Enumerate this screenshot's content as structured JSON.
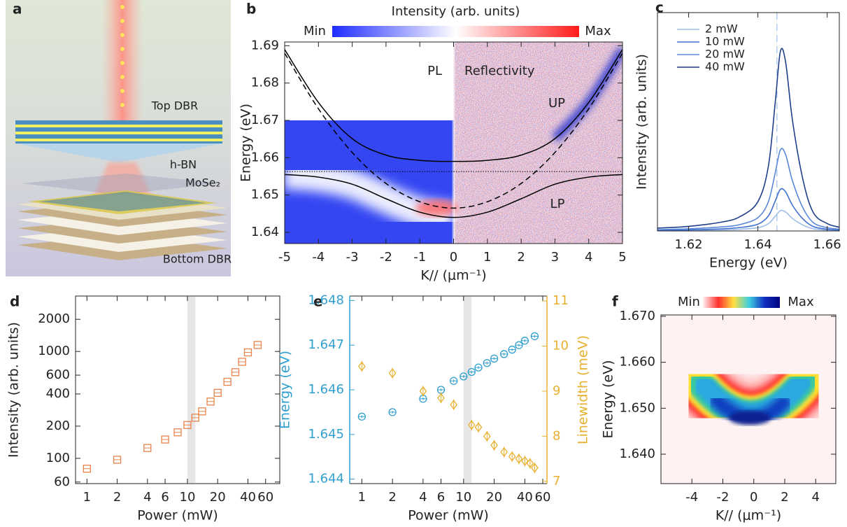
{
  "panel_a": {
    "label": "a",
    "layers": [
      "Top DBR",
      "h-BN",
      "MoSe₂",
      "Bottom DBR"
    ]
  },
  "chart_data": [
    {
      "type": "heatmap",
      "panel": "b",
      "colorbar_title": "Intensity (arb. units)",
      "colorbar_labels": [
        "Min",
        "Max"
      ],
      "colorbar_colors": [
        "#1f2cff",
        "#ffffff",
        "#ff1a1a"
      ],
      "xlabel": "K// (μm⁻¹)",
      "ylabel": "Energy (eV)",
      "xlim": [
        -5,
        5
      ],
      "ylim": [
        1.637,
        1.691
      ],
      "xticks": [
        -5,
        -4,
        -3,
        -2,
        -1,
        0,
        1,
        2,
        3,
        4,
        5
      ],
      "yticks": [
        1.64,
        1.65,
        1.66,
        1.67,
        1.68,
        1.69
      ],
      "annotations": [
        "PL",
        "Reflectivity",
        "UP",
        "LP"
      ],
      "x": [
        -5,
        -4,
        -3,
        -2,
        -1,
        0,
        1,
        2,
        3,
        4,
        5
      ],
      "curves": [
        {
          "style": "solid",
          "color": "#000000",
          "values": [
            1.689,
            1.6748,
            1.6651,
            1.6607,
            1.6593,
            1.659,
            1.6593,
            1.6607,
            1.6651,
            1.6748,
            1.689
          ]
        },
        {
          "style": "solid",
          "color": "#000000",
          "values": [
            1.6555,
            1.6548,
            1.6529,
            1.649,
            1.6454,
            1.644,
            1.6454,
            1.649,
            1.6529,
            1.6548,
            1.6555
          ]
        },
        {
          "style": "dashed",
          "color": "#000000",
          "values": [
            1.688,
            1.6731,
            1.6614,
            1.6531,
            1.6482,
            1.6465,
            1.6482,
            1.6531,
            1.6614,
            1.6731,
            1.688
          ]
        }
      ],
      "exciton_energy": 1.6563
    },
    {
      "type": "line",
      "panel": "c",
      "xlabel": "Energy (eV)",
      "ylabel": "Intensity (arb. units)",
      "xlim": [
        1.611,
        1.6635
      ],
      "ylim": [
        0,
        1
      ],
      "xticks": [
        1.62,
        1.64,
        1.66
      ],
      "marker_line": 1.6455,
      "marker_color": "#8fb0e0",
      "legend": "upper left",
      "x": [
        1.611,
        1.62,
        1.63,
        1.635,
        1.64,
        1.643,
        1.645,
        1.6465,
        1.648,
        1.65,
        1.653,
        1.656,
        1.66,
        1.6635
      ],
      "series": [
        {
          "name": "2 mW",
          "color": "#9fbde9",
          "values": [
            0.001,
            0.002,
            0.005,
            0.008,
            0.015,
            0.033,
            0.067,
            0.093,
            0.087,
            0.057,
            0.027,
            0.01,
            0.004,
            0.002
          ]
        },
        {
          "name": "10 mW",
          "color": "#3f6fcf",
          "values": [
            0.003,
            0.005,
            0.01,
            0.016,
            0.031,
            0.068,
            0.137,
            0.191,
            0.179,
            0.117,
            0.055,
            0.02,
            0.008,
            0.004
          ]
        },
        {
          "name": "20 mW",
          "color": "#5a87d8",
          "values": [
            0.006,
            0.01,
            0.019,
            0.03,
            0.061,
            0.133,
            0.266,
            0.372,
            0.35,
            0.228,
            0.106,
            0.038,
            0.015,
            0.008
          ]
        },
        {
          "name": "40 mW",
          "color": "#1e3f8a",
          "values": [
            0.013,
            0.021,
            0.042,
            0.067,
            0.134,
            0.294,
            0.588,
            0.823,
            0.773,
            0.504,
            0.235,
            0.084,
            0.034,
            0.017
          ]
        }
      ]
    },
    {
      "type": "scatter",
      "panel": "d",
      "xlabel": "Power (mW)",
      "ylabel": "Intensity (arb. units)",
      "xscale": "log",
      "yscale": "log",
      "xlim": [
        0.77,
        83
      ],
      "ylim": [
        58,
        3300
      ],
      "xticks": [
        1,
        2,
        4,
        6,
        10,
        20,
        40,
        60
      ],
      "yticks": [
        60,
        100,
        200,
        400,
        600,
        1000,
        2000
      ],
      "shaded_x": [
        10,
        12
      ],
      "shade_color": "#e6e6e6",
      "series": [
        {
          "color": "#e8834a",
          "marker": "square",
          "x": [
            1,
            2,
            4,
            6,
            8,
            10,
            12,
            14,
            17,
            20,
            25,
            30,
            35,
            40,
            50
          ],
          "values": [
            80,
            97,
            125,
            150,
            175,
            205,
            240,
            275,
            340,
            410,
            520,
            640,
            800,
            980,
            1150
          ]
        }
      ]
    },
    {
      "type": "scatter",
      "panel": "e",
      "xlabel": "Power (mW)",
      "ylabel": "Energy (eV)",
      "y2label": "Linewidth (meV)",
      "xscale": "log",
      "xlim": [
        0.76,
        66
      ],
      "ylim": [
        1.6439,
        1.6481
      ],
      "yticks": [
        1.644,
        1.645,
        1.646,
        1.647,
        1.648
      ],
      "y2lim": [
        6.95,
        11.11
      ],
      "y2ticks": [
        7,
        8,
        9,
        10,
        11
      ],
      "xticks": [
        1,
        2,
        4,
        6,
        10,
        20,
        40,
        60
      ],
      "shaded_x": [
        10,
        12
      ],
      "shade_color": "#e6e6e6",
      "ycolor": "#2f9fd0",
      "y2color": "#e8b030",
      "series": [
        {
          "color": "#2f9fd0",
          "marker": "circle",
          "x": [
            1,
            2,
            4,
            6,
            8,
            10,
            12,
            14,
            17,
            20,
            25,
            30,
            35,
            40,
            50
          ],
          "values": [
            1.6454,
            1.6455,
            1.6458,
            1.646,
            1.6462,
            1.6463,
            1.6464,
            1.6465,
            1.6466,
            1.6467,
            1.6468,
            1.6469,
            1.647,
            1.6471,
            1.6472
          ],
          "errors": [
            3e-05,
            3e-05,
            3e-05,
            3e-05,
            3e-05,
            3e-05,
            3e-05,
            3e-05,
            3e-05,
            3e-05,
            3e-05,
            3e-05,
            3e-05,
            3e-05,
            3e-05
          ]
        },
        {
          "color": "#e8b030",
          "marker": "diamond",
          "axis": "y2",
          "x": [
            1,
            2,
            4,
            6,
            8,
            12,
            14,
            17,
            20,
            25,
            30,
            35,
            40,
            45,
            50
          ],
          "values": [
            9.55,
            9.4,
            9.0,
            8.85,
            8.7,
            8.25,
            8.2,
            8.0,
            7.8,
            7.65,
            7.55,
            7.5,
            7.45,
            7.4,
            7.3
          ],
          "errors": [
            0.12,
            0.12,
            0.12,
            0.12,
            0.12,
            0.12,
            0.12,
            0.12,
            0.12,
            0.12,
            0.12,
            0.12,
            0.12,
            0.12,
            0.12
          ]
        }
      ]
    },
    {
      "type": "heatmap",
      "panel": "f",
      "colorbar_labels": [
        "Min",
        "Max"
      ],
      "colorbar_colors": [
        "#fff0f0",
        "#ff3030",
        "#ffe040",
        "#40d0e0",
        "#1030c0",
        "#000080"
      ],
      "xlabel": "K// (μm⁻¹)",
      "ylabel": "Energy (eV)",
      "xlim": [
        -6,
        5.3
      ],
      "ylim": [
        1.6336,
        1.6703
      ],
      "xticks": [
        -4,
        -2,
        0,
        2,
        4
      ],
      "yticks": [
        {
          "value": 1.64,
          "label": "1.640"
        },
        {
          "value": 1.65,
          "label": "1.650"
        },
        {
          "value": 1.66,
          "label": "1.660"
        },
        {
          "value": 1.67,
          "label": "1.670"
        }
      ]
    }
  ]
}
